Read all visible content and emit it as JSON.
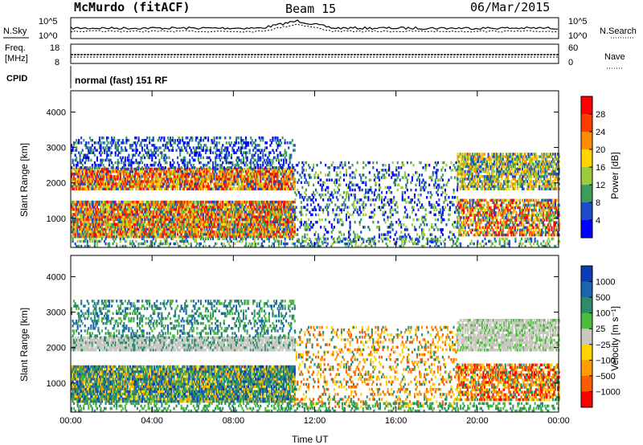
{
  "header": {
    "station": "McMurdo (fitACF)",
    "beam": "Beam 15",
    "date": "06/Mar/2015"
  },
  "top_panel": {
    "left_label": "N.Sky",
    "right_label": "N.Search",
    "y_ticks": [
      "10^5",
      "10^0"
    ],
    "y2_ticks": [
      "10^5",
      "10^0"
    ]
  },
  "freq_panel": {
    "left_label_line1": "Freq.",
    "left_label_line2": "[MHz]",
    "right_label": "Nave",
    "y_ticks": [
      "18",
      "8"
    ],
    "y2_ticks": [
      "60",
      "0"
    ]
  },
  "cpid": {
    "label": "CPID",
    "text": "normal (fast) 151 RF"
  },
  "chart_data": [
    {
      "type": "heatmap",
      "name": "power",
      "ylabel": "Slant Range [km]",
      "y_ticks": [
        1000,
        2000,
        3000,
        4000
      ],
      "ylim": [
        180,
        4600
      ],
      "x_ticks": [
        "00:00",
        "04:00",
        "08:00",
        "12:00",
        "16:00",
        "20:00",
        "00:00"
      ],
      "xlim_hours": [
        0,
        24
      ],
      "colorbar": {
        "label": "Power [dB]",
        "ticks": [
          "28",
          "24",
          "20",
          "16",
          "12",
          "8",
          "4"
        ],
        "colors": [
          "#ff0000",
          "#ff3c00",
          "#ff8c00",
          "#ffd400",
          "#9ccc3c",
          "#3c9c5c",
          "#1c4cc8",
          "#0000ff"
        ]
      }
    },
    {
      "type": "heatmap",
      "name": "velocity",
      "ylabel": "Slant Range [km]",
      "y_ticks": [
        1000,
        2000,
        3000,
        4000
      ],
      "ylim": [
        180,
        4600
      ],
      "x_ticks": [
        "00:00",
        "04:00",
        "08:00",
        "12:00",
        "16:00",
        "20:00",
        "00:00"
      ],
      "xlabel": "Time UT",
      "xlim_hours": [
        0,
        24
      ],
      "colorbar": {
        "label": "Velocity [m s⁻¹]",
        "ticks": [
          "1000",
          "500",
          "100",
          "25",
          "−25",
          "−100",
          "−500",
          "−1000"
        ],
        "colors": [
          "#0a3cb4",
          "#1c64b0",
          "#2c8c6c",
          "#4cbc3c",
          "#c8c8c0",
          "#ffd400",
          "#ff9c00",
          "#ff5c00",
          "#ff0000"
        ]
      }
    }
  ]
}
